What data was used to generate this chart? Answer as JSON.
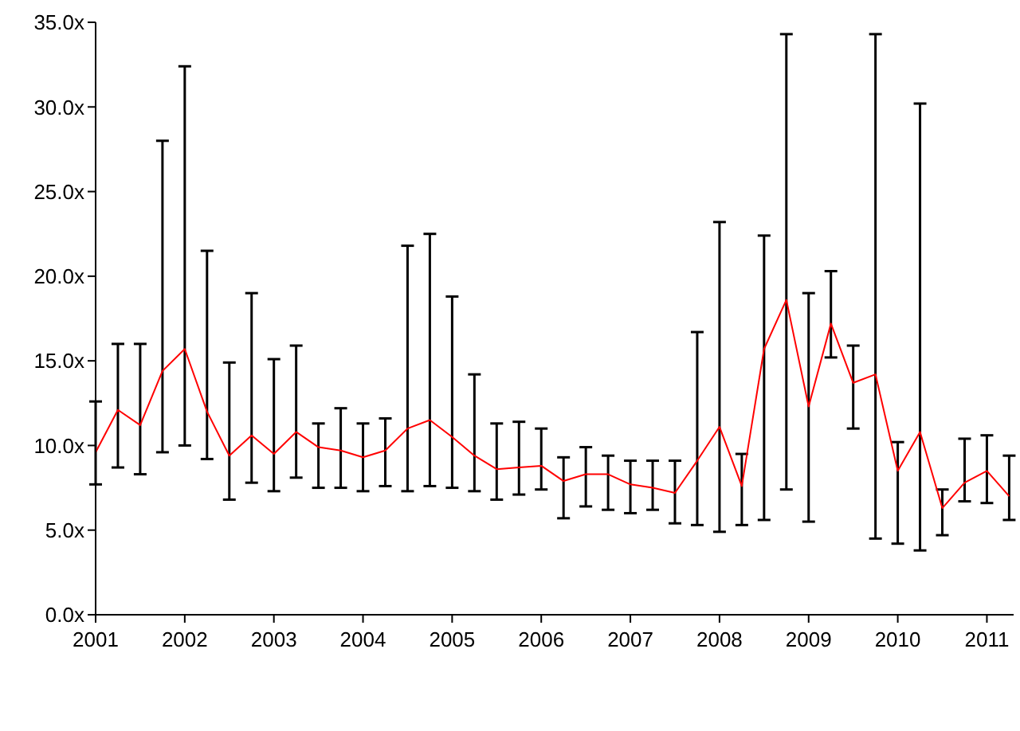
{
  "chart_data": {
    "type": "line",
    "x": [
      2001,
      2001.25,
      2001.5,
      2001.75,
      2002,
      2002.25,
      2002.5,
      2002.75,
      2003,
      2003.25,
      2003.5,
      2003.75,
      2004,
      2004.25,
      2004.5,
      2004.75,
      2005,
      2005.25,
      2005.5,
      2005.75,
      2006,
      2006.25,
      2006.5,
      2006.75,
      2007,
      2007.25,
      2007.5,
      2007.75,
      2008,
      2008.25,
      2008.5,
      2008.75,
      2009,
      2009.25,
      2009.5,
      2009.75,
      2010,
      2010.25,
      2010.5,
      2010.75,
      2011,
      2011.25
    ],
    "series": [
      {
        "color": "#ff0000",
        "values": [
          9.6,
          12.1,
          11.2,
          14.4,
          15.7,
          12.0,
          9.4,
          10.6,
          9.5,
          10.8,
          9.9,
          9.7,
          9.3,
          9.7,
          11.0,
          11.5,
          10.5,
          9.4,
          8.6,
          8.7,
          8.8,
          7.9,
          8.3,
          8.3,
          7.7,
          7.5,
          7.2,
          9.1,
          11.1,
          7.6,
          15.7,
          18.6,
          12.3,
          17.2,
          13.7,
          14.2,
          8.5,
          10.8,
          6.3,
          7.8,
          8.5,
          7.0
        ],
        "errors": [
          [
            7.7,
            12.6
          ],
          [
            8.7,
            16.0
          ],
          [
            8.3,
            16.0
          ],
          [
            9.6,
            28.0
          ],
          [
            10.0,
            32.4
          ],
          [
            9.2,
            21.5
          ],
          [
            6.8,
            14.9
          ],
          [
            7.8,
            19.0
          ],
          [
            7.3,
            15.1
          ],
          [
            8.1,
            15.9
          ],
          [
            7.5,
            11.3
          ],
          [
            7.5,
            12.2
          ],
          [
            7.3,
            11.3
          ],
          [
            7.6,
            11.6
          ],
          [
            7.3,
            21.8
          ],
          [
            7.6,
            22.5
          ],
          [
            7.5,
            18.8
          ],
          [
            7.3,
            14.2
          ],
          [
            6.8,
            11.3
          ],
          [
            7.1,
            11.4
          ],
          [
            7.4,
            11.0
          ],
          [
            5.7,
            9.3
          ],
          [
            6.4,
            9.9
          ],
          [
            6.2,
            9.4
          ],
          [
            6.0,
            9.1
          ],
          [
            6.2,
            9.1
          ],
          [
            5.4,
            9.1
          ],
          [
            5.3,
            16.7
          ],
          [
            4.9,
            23.2
          ],
          [
            5.3,
            9.5
          ],
          [
            5.6,
            22.4
          ],
          [
            7.4,
            34.3
          ],
          [
            5.5,
            19.0
          ],
          [
            15.2,
            20.3
          ],
          [
            11.0,
            15.9
          ],
          [
            4.5,
            34.3
          ],
          [
            4.2,
            10.2
          ],
          [
            3.8,
            30.2
          ],
          [
            4.7,
            7.4
          ],
          [
            6.7,
            10.4
          ],
          [
            6.6,
            10.6
          ],
          [
            5.6,
            9.4
          ]
        ]
      }
    ],
    "xlim": [
      2001,
      2011.3
    ],
    "xticks": [
      2001,
      2002,
      2003,
      2004,
      2005,
      2006,
      2007,
      2008,
      2009,
      2010,
      2011
    ],
    "ylim": [
      0,
      35
    ],
    "yticks": [
      {
        "value": 0,
        "label": "0.0x"
      },
      {
        "value": 5,
        "label": "5.0x"
      },
      {
        "value": 10,
        "label": "10.0x"
      },
      {
        "value": 15,
        "label": "15.0x"
      },
      {
        "value": 20,
        "label": "20.0x"
      },
      {
        "value": 25,
        "label": "25.0x"
      },
      {
        "value": 30,
        "label": "30.0x"
      },
      {
        "value": 35,
        "label": "35.0x"
      }
    ],
    "grid": false,
    "legend": false,
    "marker": "none",
    "line_style": "solid"
  }
}
